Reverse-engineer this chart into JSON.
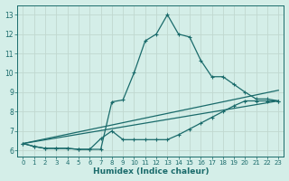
{
  "xlabel": "Humidex (Indice chaleur)",
  "background_color": "#d4eee8",
  "grid_color": "#c0d8d0",
  "line_color": "#1a6b6b",
  "xlim": [
    -0.5,
    23.5
  ],
  "ylim": [
    5.7,
    13.5
  ],
  "xticks": [
    0,
    1,
    2,
    3,
    4,
    5,
    6,
    7,
    8,
    9,
    10,
    11,
    12,
    13,
    14,
    15,
    16,
    17,
    18,
    19,
    20,
    21,
    22,
    23
  ],
  "yticks": [
    6,
    7,
    8,
    9,
    10,
    11,
    12,
    13
  ],
  "line1_x": [
    0,
    1,
    2,
    3,
    4,
    5,
    6,
    7,
    8,
    9,
    10,
    11,
    12,
    13,
    14,
    15,
    16,
    17,
    18,
    19,
    20,
    21,
    22,
    23
  ],
  "line1_y": [
    6.35,
    6.2,
    6.1,
    6.1,
    6.1,
    6.05,
    6.05,
    6.05,
    8.5,
    8.6,
    10.0,
    11.65,
    12.0,
    13.0,
    12.0,
    11.85,
    10.65,
    9.8,
    9.8,
    9.4,
    9.0,
    8.65,
    8.65,
    8.55
  ],
  "line2_x": [
    0,
    1,
    2,
    3,
    4,
    5,
    6,
    7,
    8,
    9,
    10,
    11,
    12,
    13,
    14,
    15,
    16,
    17,
    18,
    19,
    20,
    21,
    22,
    23
  ],
  "line2_y": [
    6.35,
    6.2,
    6.1,
    6.1,
    6.1,
    6.05,
    6.05,
    6.6,
    7.0,
    6.55,
    6.55,
    6.55,
    6.55,
    6.55,
    6.8,
    7.1,
    7.4,
    7.7,
    8.0,
    8.3,
    8.55,
    8.55,
    8.55,
    8.55
  ],
  "line3_x": [
    0,
    23
  ],
  "line3_y": [
    6.35,
    8.55
  ],
  "line4_x": [
    0,
    23
  ],
  "line4_y": [
    6.35,
    9.1
  ]
}
